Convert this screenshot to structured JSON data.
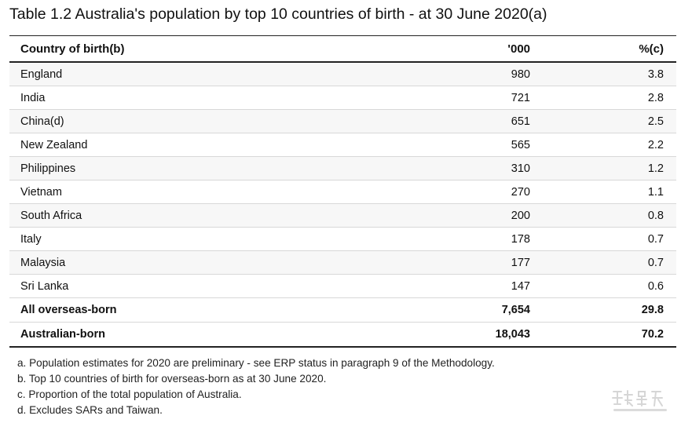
{
  "title": "Table 1.2 Australia's population by top 10 countries of birth - at 30 June 2020(a)",
  "table": {
    "headers": [
      "Country of birth(b)",
      "'000",
      "%(c)"
    ],
    "rows": [
      {
        "country": "England",
        "thousands": "980",
        "percent": "3.8"
      },
      {
        "country": "India",
        "thousands": "721",
        "percent": "2.8"
      },
      {
        "country": "China(d)",
        "thousands": "651",
        "percent": "2.5"
      },
      {
        "country": "New Zealand",
        "thousands": "565",
        "percent": "2.2"
      },
      {
        "country": "Philippines",
        "thousands": "310",
        "percent": "1.2"
      },
      {
        "country": "Vietnam",
        "thousands": "270",
        "percent": "1.1"
      },
      {
        "country": "South Africa",
        "thousands": "200",
        "percent": "0.8"
      },
      {
        "country": "Italy",
        "thousands": "178",
        "percent": "0.7"
      },
      {
        "country": "Malaysia",
        "thousands": "177",
        "percent": "0.7"
      },
      {
        "country": "Sri Lanka",
        "thousands": "147",
        "percent": "0.6"
      }
    ],
    "totals": [
      {
        "label": "All overseas-born",
        "thousands": "7,654",
        "percent": "29.8"
      },
      {
        "label": "Australian-born",
        "thousands": "18,043",
        "percent": "70.2"
      }
    ]
  },
  "notes": [
    "a. Population estimates for 2020 are preliminary - see ERP status in paragraph 9 of the Methodology.",
    "b. Top 10 countries of birth for overseas-born as at 30 June 2020.",
    "c. Proportion of the total population of Australia.",
    "d. Excludes SARs and Taiwan."
  ],
  "watermark": {
    "icon": "watermark-logo",
    "color": "#c9c9c9"
  }
}
